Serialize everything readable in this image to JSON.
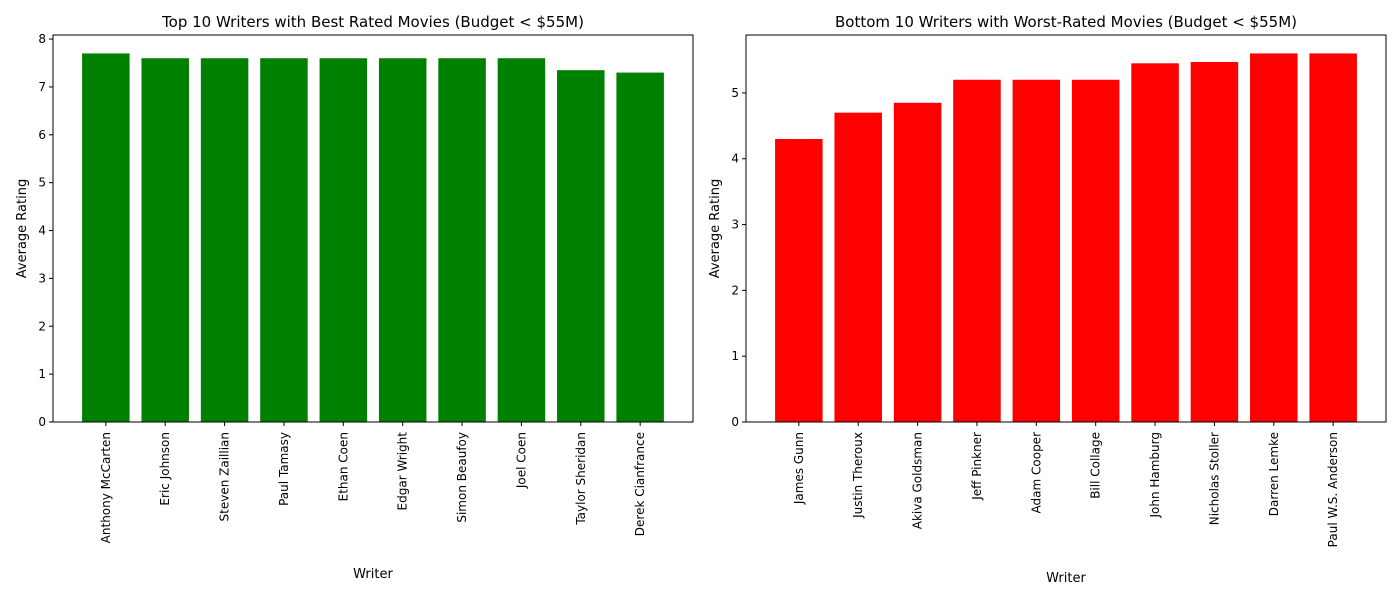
{
  "chart_data": [
    {
      "type": "bar",
      "title": "Top 10 Writers with Best Rated Movies (Budget < $55M)",
      "xlabel": "Writer",
      "ylabel": "Average Rating",
      "categories": [
        "Anthony McCarten",
        "Eric Johnson",
        "Steven Zaillian",
        "Paul Tamasy",
        "Ethan Coen",
        "Edgar Wright",
        "Simon Beaufoy",
        "Joel Coen",
        "Taylor Sheridan",
        "Derek Cianfrance"
      ],
      "values": [
        7.7,
        7.6,
        7.6,
        7.6,
        7.6,
        7.6,
        7.6,
        7.6,
        7.35,
        7.3
      ],
      "ylim": [
        0,
        8.085
      ],
      "yticks": [
        0,
        1,
        2,
        3,
        4,
        5,
        6,
        7,
        8
      ],
      "bar_color": "#008000",
      "grid": false,
      "legend": "none"
    },
    {
      "type": "bar",
      "title": "Bottom 10 Writers with Worst-Rated Movies (Budget < $55M)",
      "xlabel": "Writer",
      "ylabel": "Average Rating",
      "categories": [
        "James Gunn",
        "Justin Theroux",
        "Akiva Goldsman",
        "Jeff Pinkner",
        "Adam Cooper",
        "Bill Collage",
        "John Hamburg",
        "Nicholas Stoller",
        "Darren Lemke",
        "Paul W.S. Anderson"
      ],
      "values": [
        4.3,
        4.7,
        4.85,
        5.2,
        5.2,
        5.2,
        5.45,
        5.47,
        5.6,
        5.6
      ],
      "ylim": [
        0,
        5.88
      ],
      "yticks": [
        0,
        1,
        2,
        3,
        4,
        5
      ],
      "bar_color": "#ff0000",
      "grid": false,
      "legend": "none"
    }
  ]
}
